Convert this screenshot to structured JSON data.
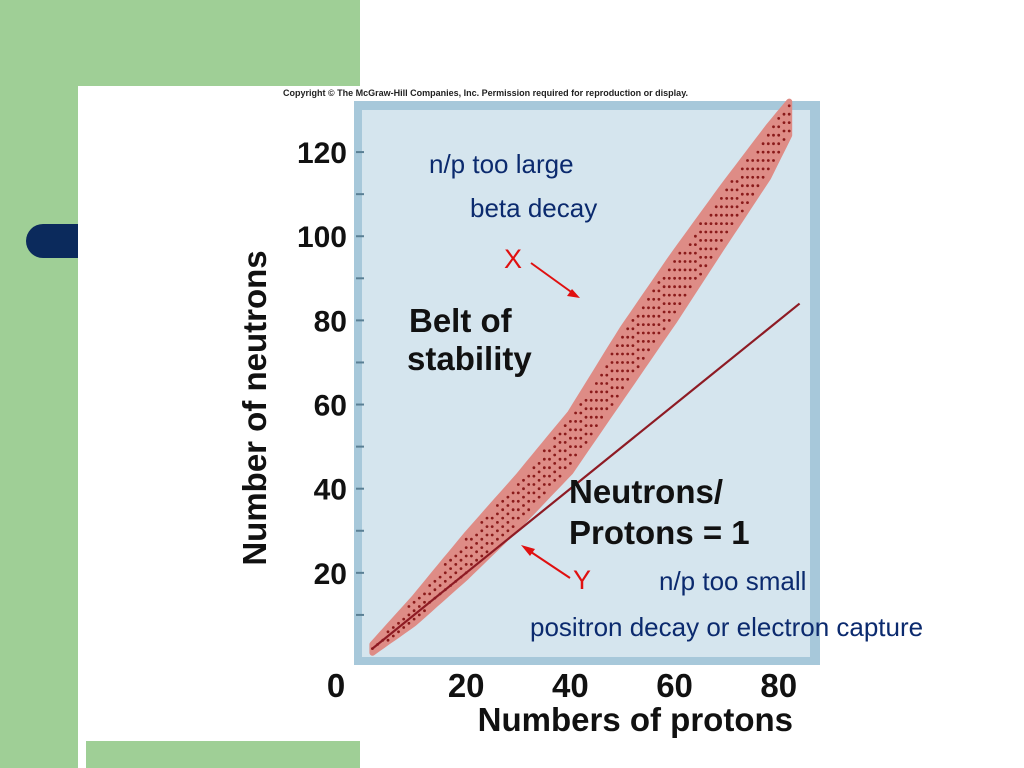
{
  "copyright": "Copyright © The McGraw-Hill Companies, Inc. Permission required for reproduction or display.",
  "annotations": {
    "too_large_line1": "n/p too large",
    "too_large_line2": "beta decay",
    "marker_x": "X",
    "marker_y": "Y",
    "too_small_line1": "n/p too small",
    "too_small_line2": "positron decay or electron capture"
  },
  "colors": {
    "slide_green": "#9fcf96",
    "navy": "#0b2a5c",
    "plot_background": "#d5e5ee",
    "plot_frame": "#a7c8da",
    "belt_fill": "#de8c86",
    "belt_dot": "#8a1a1a",
    "line_color": "#8e1b24",
    "arrow_color": "#e01010",
    "note_color": "#0b2a6e"
  },
  "chart_data": {
    "type": "scatter",
    "title": "",
    "xlabel": "Numbers of protons",
    "ylabel": "Number of neutrons",
    "xlim": [
      0,
      86
    ],
    "ylim": [
      0,
      130
    ],
    "x_ticks": [
      0,
      20,
      40,
      60,
      80
    ],
    "y_ticks": [
      20,
      40,
      60,
      80,
      100,
      120
    ],
    "region_label_lines": [
      "Belt of",
      "stability"
    ],
    "line_label_lines": [
      "Neutrons/",
      "Protons = 1"
    ],
    "belt": {
      "center": [
        [
          2,
          2
        ],
        [
          10,
          11
        ],
        [
          20,
          24
        ],
        [
          30,
          37
        ],
        [
          40,
          51
        ],
        [
          50,
          70
        ],
        [
          60,
          88
        ],
        [
          70,
          106
        ],
        [
          78,
          120
        ],
        [
          82,
          128
        ]
      ],
      "half_width": [
        [
          2,
          1
        ],
        [
          10,
          3
        ],
        [
          20,
          5
        ],
        [
          30,
          6
        ],
        [
          40,
          7
        ],
        [
          50,
          8
        ],
        [
          60,
          8
        ],
        [
          70,
          7
        ],
        [
          78,
          6
        ],
        [
          82,
          4
        ]
      ]
    },
    "reference_line": {
      "label": "N/Z = 1",
      "points": [
        [
          2,
          2
        ],
        [
          84,
          84
        ]
      ]
    }
  }
}
